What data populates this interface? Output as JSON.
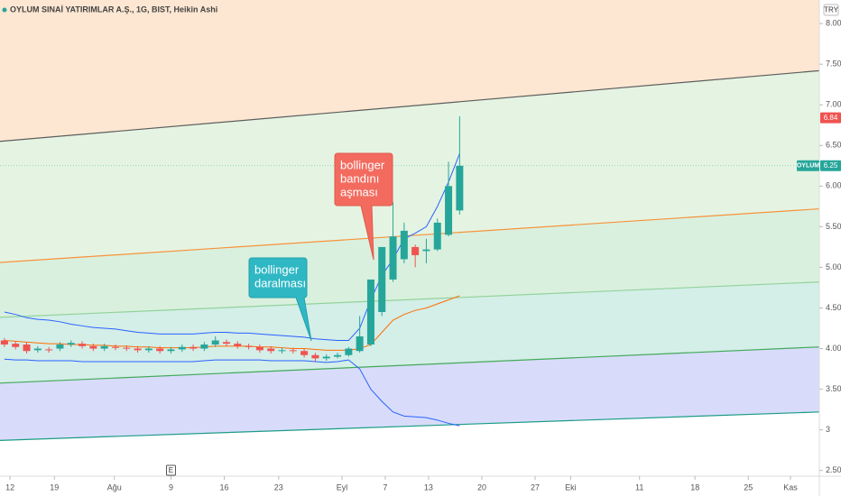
{
  "chart_data": {
    "type": "candlestick",
    "title": "OYLUM SINAİ YATIRIMLAR A.Ş., 1G, BIST, Heikin Ashi",
    "currency": "TRY",
    "x": [
      0,
      1,
      2,
      3,
      4,
      5,
      6,
      7,
      8,
      9,
      10,
      11,
      12,
      13,
      14,
      15,
      16,
      17,
      18,
      19,
      20,
      21,
      22,
      23,
      24,
      25,
      26,
      27,
      28,
      29,
      30,
      31,
      32,
      33,
      34,
      35,
      36,
      37,
      38,
      39,
      40,
      41
    ],
    "open": [
      4.1,
      4.06,
      4.05,
      3.98,
      3.99,
      4.0,
      4.05,
      4.06,
      4.03,
      4.0,
      4.02,
      4.01,
      4.0,
      3.98,
      4.0,
      3.97,
      3.99,
      4.02,
      4.0,
      4.05,
      4.08,
      4.06,
      4.03,
      4.02,
      4.0,
      3.97,
      3.98,
      3.97,
      3.92,
      3.88,
      3.9,
      3.92,
      3.97,
      4.05,
      4.45,
      4.85,
      5.1,
      5.25,
      5.2,
      5.22,
      5.4,
      5.7
    ],
    "high": [
      4.13,
      4.09,
      4.08,
      4.03,
      4.02,
      4.08,
      4.1,
      4.09,
      4.06,
      4.06,
      4.05,
      4.04,
      4.03,
      4.03,
      4.03,
      4.02,
      4.05,
      4.05,
      4.08,
      4.15,
      4.11,
      4.09,
      4.06,
      4.05,
      4.03,
      4.01,
      4.01,
      4.0,
      3.95,
      3.93,
      3.95,
      4.02,
      4.4,
      4.85,
      5.25,
      5.8,
      5.55,
      5.28,
      5.35,
      5.6,
      6.3,
      6.86
    ],
    "low": [
      4.02,
      3.99,
      3.94,
      3.95,
      3.95,
      3.97,
      4.02,
      4.0,
      3.97,
      3.97,
      3.98,
      3.97,
      3.95,
      3.95,
      3.94,
      3.94,
      3.96,
      3.97,
      3.97,
      4.02,
      4.03,
      4.0,
      3.99,
      3.95,
      3.94,
      3.94,
      3.94,
      3.89,
      3.84,
      3.85,
      3.88,
      3.9,
      3.95,
      4.03,
      4.4,
      4.82,
      5.05,
      5.0,
      5.05,
      5.2,
      5.38,
      5.65
    ],
    "close": [
      4.05,
      4.02,
      3.97,
      4.0,
      3.98,
      4.05,
      4.07,
      4.03,
      4.0,
      4.03,
      4.01,
      4.0,
      3.98,
      4.0,
      3.97,
      3.99,
      4.02,
      4.0,
      4.05,
      4.1,
      4.06,
      4.03,
      4.02,
      3.98,
      3.97,
      3.98,
      3.97,
      3.92,
      3.88,
      3.9,
      3.92,
      4.0,
      4.15,
      4.85,
      5.25,
      5.38,
      5.45,
      5.15,
      5.22,
      5.55,
      6.0,
      6.25
    ],
    "up_color": "#26a69a",
    "down_color": "#ef5350",
    "bollinger": [
      {
        "color": "#2962ff",
        "values": [
          4.45,
          4.42,
          4.38,
          4.36,
          4.35,
          4.33,
          4.3,
          4.28,
          4.26,
          4.25,
          4.24,
          4.22,
          4.2,
          4.19,
          4.18,
          4.18,
          4.18,
          4.18,
          4.19,
          4.2,
          4.2,
          4.19,
          4.19,
          4.18,
          4.17,
          4.16,
          4.15,
          4.14,
          4.12,
          4.11,
          4.1,
          4.1,
          4.25,
          4.6,
          4.9,
          5.1,
          5.35,
          5.42,
          5.5,
          5.75,
          6.05,
          6.4
        ]
      },
      {
        "color": "#ff6d00",
        "values": [
          4.1,
          4.09,
          4.08,
          4.07,
          4.06,
          4.06,
          4.05,
          4.05,
          4.04,
          4.04,
          4.03,
          4.03,
          4.02,
          4.02,
          4.01,
          4.01,
          4.01,
          4.01,
          4.02,
          4.03,
          4.03,
          4.03,
          4.03,
          4.02,
          4.02,
          4.01,
          4.0,
          4.0,
          3.99,
          3.98,
          3.98,
          3.98,
          4.0,
          4.05,
          4.2,
          4.35,
          4.42,
          4.47,
          4.5,
          4.55,
          4.6,
          4.65
        ]
      },
      {
        "color": "#2962ff",
        "values": [
          3.87,
          3.86,
          3.86,
          3.85,
          3.85,
          3.85,
          3.85,
          3.84,
          3.84,
          3.84,
          3.84,
          3.84,
          3.84,
          3.84,
          3.84,
          3.84,
          3.84,
          3.84,
          3.85,
          3.86,
          3.86,
          3.86,
          3.86,
          3.86,
          3.85,
          3.85,
          3.85,
          3.85,
          3.84,
          3.83,
          3.84,
          3.86,
          3.75,
          3.5,
          3.35,
          3.22,
          3.17,
          3.16,
          3.15,
          3.12,
          3.08,
          3.05
        ]
      }
    ],
    "channel": [
      {
        "color": "#5d5d5d",
        "values": [
          6.55,
          7.42
        ]
      },
      {
        "color": "#f7923a",
        "values": [
          5.06,
          5.72
        ]
      },
      {
        "color": "#92d39a",
        "values": [
          4.385,
          4.82
        ]
      },
      {
        "color": "#43a95a",
        "values": [
          3.575,
          4.02
        ]
      },
      {
        "color": "#1c9c86",
        "values": [
          2.87,
          3.22
        ]
      }
    ],
    "zone_colors": [
      "#fde7d2",
      "#e5f4e2",
      "#daf0de",
      "#d4eee8",
      "#d8dcfa"
    ],
    "xlim": [
      -0.4,
      73.4
    ],
    "ylim": [
      2.43,
      8.29
    ],
    "xticks": [
      {
        "value": 0.5,
        "label": "12"
      },
      {
        "value": 4.5,
        "label": "19"
      },
      {
        "value": 9.9,
        "label": "Ağu"
      },
      {
        "value": 15,
        "label": "9"
      },
      {
        "value": 19.8,
        "label": "16"
      },
      {
        "value": 24.7,
        "label": "23"
      },
      {
        "value": 30.4,
        "label": "Eyl"
      },
      {
        "value": 34.3,
        "label": "7"
      },
      {
        "value": 38.2,
        "label": "13"
      },
      {
        "value": 43,
        "label": "20"
      },
      {
        "value": 47.8,
        "label": "27"
      },
      {
        "value": 51,
        "label": "Eki"
      },
      {
        "value": 57.2,
        "label": "11"
      },
      {
        "value": 62.2,
        "label": "18"
      },
      {
        "value": 67,
        "label": "25"
      },
      {
        "value": 70.8,
        "label": "Kas"
      }
    ],
    "yticks": [
      {
        "value": 2.5,
        "label": "2.50"
      },
      3,
      {
        "value": 3.5,
        "label": "3.50"
      },
      {
        "value": 4,
        "label": "4.00"
      },
      {
        "value": 4.5,
        "label": "4.50"
      },
      {
        "value": 5,
        "label": "5.00"
      },
      {
        "value": 5.5,
        "label": "5.50"
      },
      {
        "value": 6,
        "label": "6.00"
      },
      {
        "value": 6.5,
        "label": "6.50"
      },
      {
        "value": 7,
        "label": "7.00"
      },
      {
        "value": 7.5,
        "label": "7.50"
      },
      {
        "value": 8,
        "label": "8.00"
      }
    ],
    "grid": false,
    "last_price": {
      "symbol": "OYLUM",
      "value": 6.25
    },
    "high_marker": 6.84,
    "earnings_marker": {
      "label": "E",
      "x": 15
    },
    "annotations": [
      {
        "lines": [
          "bollinger",
          "bandını",
          "aşması"
        ],
        "color": "#f36b5f"
      },
      {
        "lines": [
          "bollinger",
          "daralması"
        ],
        "color": "#2fb8c4"
      }
    ]
  }
}
